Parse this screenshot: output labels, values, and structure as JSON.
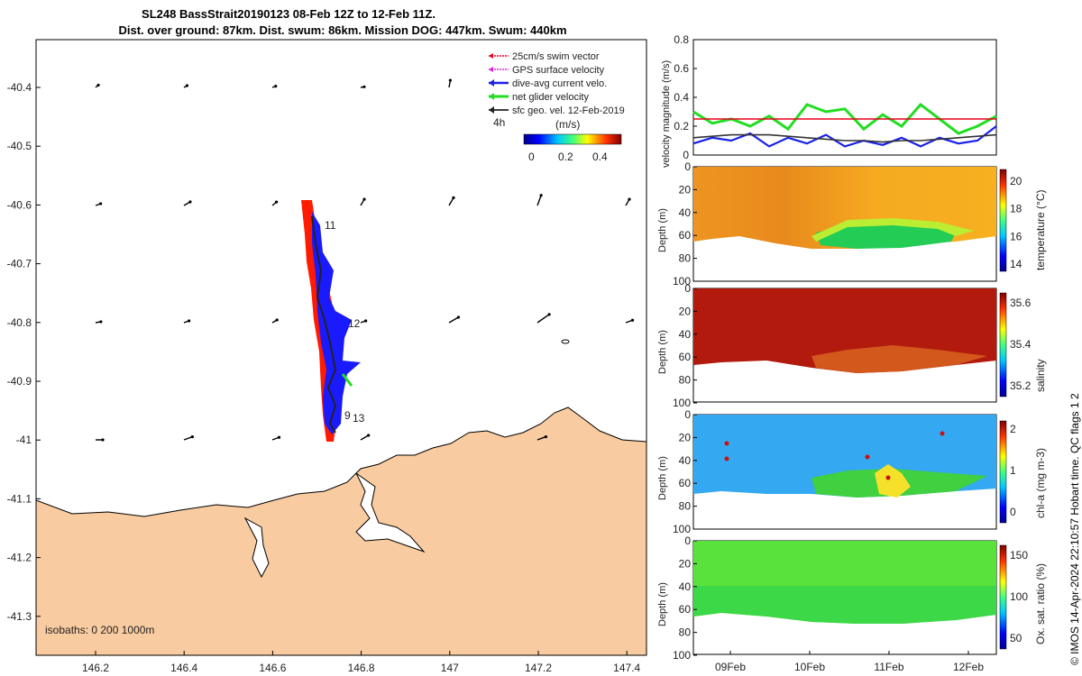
{
  "title": {
    "line1": "SL248 BassStrait20190123 08-Feb 12Z to 12-Feb 11Z.",
    "line2": "Dist. over ground: 87km. Dist. swum: 86km. Mission DOG: 447km. Swum: 440km"
  },
  "map": {
    "legend": [
      {
        "label": "25cm/s swim vector",
        "color": "#e8001c"
      },
      {
        "label": "GPS surface velocity",
        "color": "#e020e0"
      },
      {
        "label": "dive-avg current velo.",
        "color": "#1a22e6"
      },
      {
        "label": "net glider velocity",
        "color": "#22dd22"
      },
      {
        "label": "sfc geo. vel. 12-Feb-2019",
        "color": "#222222"
      }
    ],
    "interval_label": "4h",
    "colorbar_title": "(m/s)",
    "colorbar_ticks": [
      "0",
      "0.2",
      "0.4"
    ],
    "lat_ticks": [
      "-40.4",
      "-40.5",
      "-40.6",
      "-40.7",
      "-40.8",
      "-40.9",
      "-41",
      "-41.1",
      "-41.2",
      "-41.3"
    ],
    "lon_ticks": [
      "146.2",
      "146.4",
      "146.6",
      "146.8",
      "147",
      "147.2",
      "147.4"
    ],
    "waypoint_labels": [
      "11",
      "12",
      "9",
      "13"
    ],
    "isobath_label": "isobaths: 0   200  1000m",
    "land_color": "#f8cba0"
  },
  "velocity_panel": {
    "ylabel": "velocity magnitude (m/s)",
    "yticks": [
      "0",
      "0.2",
      "0.4",
      "0.6",
      "0.8"
    ]
  },
  "profile_panels": [
    {
      "id": "temperature",
      "cbar_label": "temperature (°C)",
      "cbar_ticks": [
        "20",
        "18",
        "16",
        "14"
      ],
      "ylabel": "Depth (m)"
    },
    {
      "id": "salinity",
      "cbar_label": "salinity",
      "cbar_ticks": [
        "35.6",
        "35.4",
        "35.2"
      ],
      "ylabel": "Depth (m)"
    },
    {
      "id": "chla",
      "cbar_label": "chl-a (mg m-3)",
      "cbar_ticks": [
        "2",
        "1",
        "0"
      ],
      "ylabel": "Depth (m)"
    },
    {
      "id": "oxygen",
      "cbar_label": "Ox. sat. ratio (%)",
      "cbar_ticks": [
        "150",
        "100",
        "50"
      ],
      "ylabel": "Depth (m)"
    }
  ],
  "depth_ticks": [
    "0",
    "20",
    "40",
    "60",
    "80",
    "100"
  ],
  "date_ticks": [
    "09Feb",
    "10Feb",
    "11Feb",
    "12Feb"
  ],
  "side_note": "© IMOS 14-Apr-2024 22:10:57 Hobart time. QC flags 1  2",
  "chart_data": {
    "type": "line",
    "x_dates": [
      "08-Feb 12Z",
      "08-Feb 18Z",
      "09-Feb 00Z",
      "09-Feb 06Z",
      "09-Feb 12Z",
      "09-Feb 18Z",
      "10-Feb 00Z",
      "10-Feb 06Z",
      "10-Feb 12Z",
      "10-Feb 18Z",
      "11-Feb 00Z",
      "11-Feb 06Z",
      "11-Feb 12Z",
      "11-Feb 18Z",
      "12-Feb 00Z",
      "12-Feb 06Z",
      "12-Feb 11Z"
    ],
    "series": [
      {
        "name": "net glider velocity",
        "color": "#22dd22",
        "values": [
          0.3,
          0.22,
          0.25,
          0.2,
          0.27,
          0.18,
          0.35,
          0.3,
          0.32,
          0.18,
          0.28,
          0.2,
          0.35,
          0.25,
          0.15,
          0.2,
          0.27
        ]
      },
      {
        "name": "dive-avg current velo.",
        "color": "#1a22e6",
        "values": [
          0.08,
          0.12,
          0.1,
          0.15,
          0.06,
          0.12,
          0.08,
          0.14,
          0.06,
          0.1,
          0.07,
          0.12,
          0.06,
          0.12,
          0.08,
          0.1,
          0.2
        ]
      },
      {
        "name": "25cm/s swim vector",
        "color": "#e8001c",
        "values": [
          0.25,
          0.25,
          0.25,
          0.25,
          0.25,
          0.25,
          0.25,
          0.25,
          0.25,
          0.25,
          0.25,
          0.25,
          0.25,
          0.25,
          0.25,
          0.25,
          0.25
        ]
      },
      {
        "name": "sfc geo. vel. 12-Feb-2019",
        "color": "#333333",
        "values": [
          0.12,
          0.13,
          0.14,
          0.14,
          0.14,
          0.13,
          0.12,
          0.11,
          0.1,
          0.1,
          0.09,
          0.1,
          0.1,
          0.11,
          0.12,
          0.13,
          0.14
        ]
      }
    ],
    "ylim": [
      0,
      0.8
    ]
  }
}
